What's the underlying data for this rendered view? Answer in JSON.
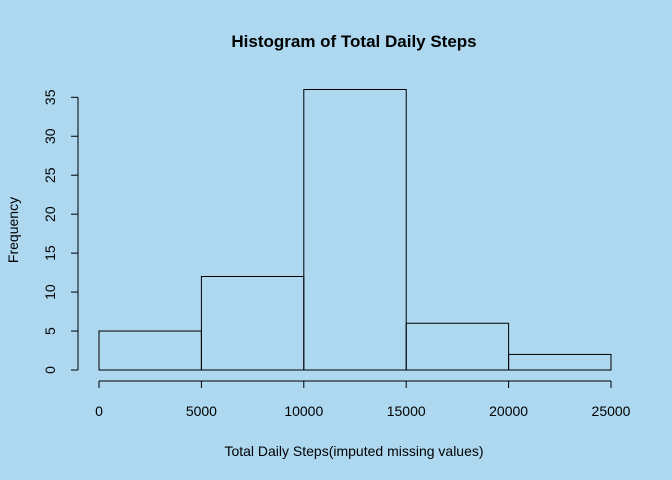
{
  "background": "#add8f0",
  "chart_data": {
    "type": "bar",
    "title": "Histogram of Total Daily Steps",
    "xlabel": "Total Daily Steps(imputed missing values)",
    "ylabel": "Frequency",
    "bins": [
      {
        "from": 0,
        "to": 5000,
        "count": 5
      },
      {
        "from": 5000,
        "to": 10000,
        "count": 12
      },
      {
        "from": 10000,
        "to": 15000,
        "count": 36
      },
      {
        "from": 15000,
        "to": 20000,
        "count": 6
      },
      {
        "from": 20000,
        "to": 25000,
        "count": 2
      }
    ],
    "xticks": [
      0,
      5000,
      10000,
      15000,
      20000,
      25000
    ],
    "yticks": [
      0,
      5,
      10,
      15,
      20,
      25,
      30,
      35
    ],
    "xlim": [
      0,
      25000
    ],
    "ylim": [
      0,
      36
    ],
    "grid": false,
    "bar_fill": "none",
    "bar_stroke": "#000000"
  }
}
